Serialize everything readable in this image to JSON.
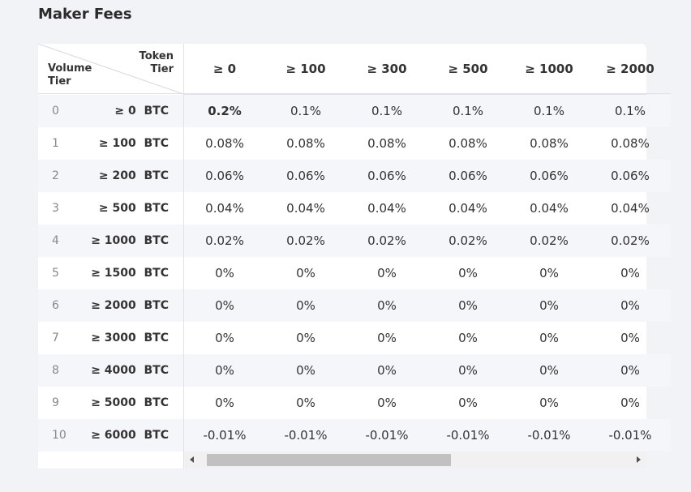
{
  "page": {
    "title": "Maker Fees"
  },
  "table": {
    "header": {
      "token_line1": "Token",
      "token_line2": "Tier",
      "volume_line1": "Volume",
      "volume_line2": "Tier"
    },
    "token_tiers": [
      "≥ 0",
      "≥ 100",
      "≥ 300",
      "≥ 500",
      "≥ 1000",
      "≥ 2000"
    ],
    "volume_tiers": [
      {
        "tier": "0",
        "volume": "≥ 0  BTC"
      },
      {
        "tier": "1",
        "volume": "≥ 100  BTC"
      },
      {
        "tier": "2",
        "volume": "≥ 200  BTC"
      },
      {
        "tier": "3",
        "volume": "≥ 500  BTC"
      },
      {
        "tier": "4",
        "volume": "≥ 1000  BTC"
      },
      {
        "tier": "5",
        "volume": "≥ 1500  BTC"
      },
      {
        "tier": "6",
        "volume": "≥ 2000  BTC"
      },
      {
        "tier": "7",
        "volume": "≥ 3000  BTC"
      },
      {
        "tier": "8",
        "volume": "≥ 4000  BTC"
      },
      {
        "tier": "9",
        "volume": "≥ 5000  BTC"
      },
      {
        "tier": "10",
        "volume": "≥ 6000  BTC"
      }
    ],
    "fees": [
      [
        "0.2%",
        "0.1%",
        "0.1%",
        "0.1%",
        "0.1%",
        "0.1%"
      ],
      [
        "0.08%",
        "0.08%",
        "0.08%",
        "0.08%",
        "0.08%",
        "0.08%"
      ],
      [
        "0.06%",
        "0.06%",
        "0.06%",
        "0.06%",
        "0.06%",
        "0.06%"
      ],
      [
        "0.04%",
        "0.04%",
        "0.04%",
        "0.04%",
        "0.04%",
        "0.04%"
      ],
      [
        "0.02%",
        "0.02%",
        "0.02%",
        "0.02%",
        "0.02%",
        "0.02%"
      ],
      [
        "0%",
        "0%",
        "0%",
        "0%",
        "0%",
        "0%"
      ],
      [
        "0%",
        "0%",
        "0%",
        "0%",
        "0%",
        "0%"
      ],
      [
        "0%",
        "0%",
        "0%",
        "0%",
        "0%",
        "0%"
      ],
      [
        "0%",
        "0%",
        "0%",
        "0%",
        "0%",
        "0%"
      ],
      [
        "0%",
        "0%",
        "0%",
        "0%",
        "0%",
        "0%"
      ],
      [
        "-0.01%",
        "-0.01%",
        "-0.01%",
        "-0.01%",
        "-0.01%",
        "-0.01%"
      ]
    ],
    "highlight_cell": [
      0,
      0
    ]
  },
  "colors": {
    "page_bg": "#f2f3f7",
    "stripe": "#f5f6f9",
    "card": "#ffffff",
    "border": "#e0e2e8"
  },
  "scrollbar": {
    "position": 0.0,
    "visible_fraction": 0.58
  }
}
